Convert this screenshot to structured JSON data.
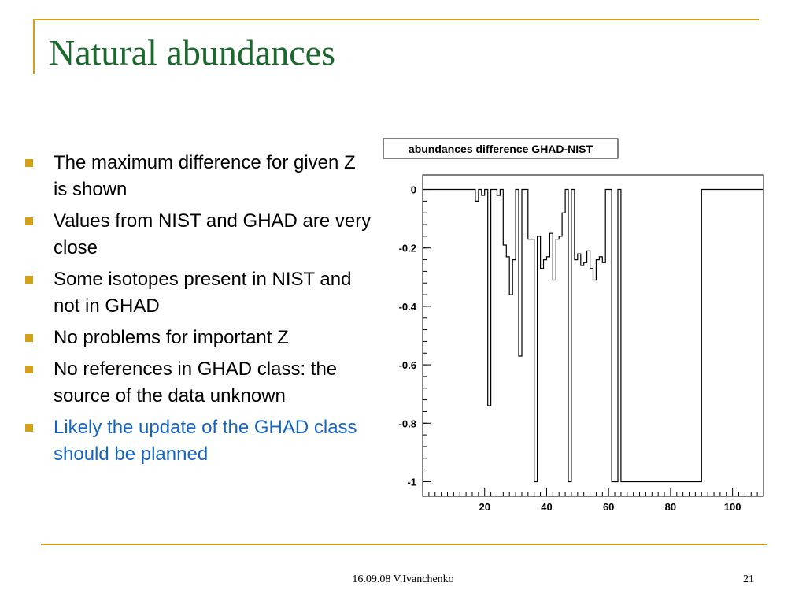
{
  "slide": {
    "title": "Natural abundances",
    "bullets": [
      "The maximum difference for given Z is shown",
      "Values from NIST and GHAD are very close",
      "Some isotopes present in NIST and not in GHAD",
      "No problems for important Z",
      "No references in GHAD class: the source of the data unknown",
      "Likely the update of the GHAD class should be planned"
    ],
    "footer": "16.09.08 V.Ivanchenko",
    "page_number": "21"
  },
  "colors": {
    "title": "#1a6a2e",
    "accent": "#d4a017",
    "highlight_text": "#1565c0"
  },
  "chart_data": {
    "type": "histogram",
    "title": "abundances difference GHAD-NIST",
    "xlabel": "",
    "ylabel": "",
    "xlim": [
      0,
      110
    ],
    "ylim": [
      -1.05,
      0.05
    ],
    "x_ticks": [
      20,
      40,
      60,
      80,
      100
    ],
    "y_ticks": [
      0,
      -0.2,
      -0.4,
      -0.6,
      -0.8,
      -1
    ],
    "y_tick_labels": [
      "0",
      "-0.2",
      "-0.4",
      "-0.6",
      "-0.8",
      "-1"
    ],
    "grid": false,
    "x": [
      1,
      2,
      3,
      4,
      5,
      6,
      7,
      8,
      9,
      10,
      11,
      12,
      13,
      14,
      15,
      16,
      17,
      18,
      19,
      20,
      21,
      22,
      23,
      24,
      25,
      26,
      27,
      28,
      29,
      30,
      31,
      32,
      33,
      34,
      35,
      36,
      37,
      38,
      39,
      40,
      41,
      42,
      43,
      44,
      45,
      46,
      47,
      48,
      49,
      50,
      51,
      52,
      53,
      54,
      55,
      56,
      57,
      58,
      59,
      60,
      61,
      62,
      63,
      64,
      65,
      66,
      67,
      68,
      69,
      70,
      71,
      72,
      73,
      74,
      75,
      76,
      77,
      78,
      79,
      80,
      81,
      82,
      83,
      84,
      85,
      86,
      87,
      88,
      89,
      90,
      91,
      92,
      93,
      94,
      95,
      96,
      97,
      98,
      99,
      100,
      101,
      102,
      103,
      104,
      105,
      106,
      107,
      108,
      109,
      110
    ],
    "values": [
      0,
      0,
      0,
      0,
      0,
      0,
      0,
      0,
      0,
      0,
      0,
      0,
      0,
      0,
      0,
      0,
      0,
      -0.04,
      0,
      -0.02,
      0,
      -0.74,
      0,
      0,
      -0.02,
      0,
      -0.19,
      -0.23,
      -0.36,
      -0.24,
      0,
      -0.57,
      0,
      0,
      -0.17,
      -0.17,
      -1.0,
      -0.16,
      -0.27,
      -0.24,
      -0.23,
      -0.15,
      -0.31,
      -0.17,
      -0.16,
      -0.08,
      0,
      -1.0,
      0,
      -0.24,
      -0.22,
      -0.26,
      -0.25,
      -0.21,
      -0.27,
      -0.31,
      -0.24,
      -0.23,
      -0.25,
      0,
      0,
      -1.0,
      -1.0,
      0,
      -1.0,
      -1.0,
      -1.0,
      -1.0,
      -1.0,
      -1.0,
      -1.0,
      -1.0,
      -1.0,
      -1.0,
      -1.0,
      -1.0,
      -1.0,
      -1.0,
      -1.0,
      -1.0,
      -1.0,
      -1.0,
      -1.0,
      -1.0,
      -1.0,
      -1.0,
      -1.0,
      -1.0,
      -1.0,
      -1.0,
      0,
      0,
      0,
      0,
      0,
      0,
      0,
      0,
      0,
      0,
      0,
      0,
      0,
      0,
      0,
      0,
      0,
      0,
      0,
      0
    ]
  }
}
